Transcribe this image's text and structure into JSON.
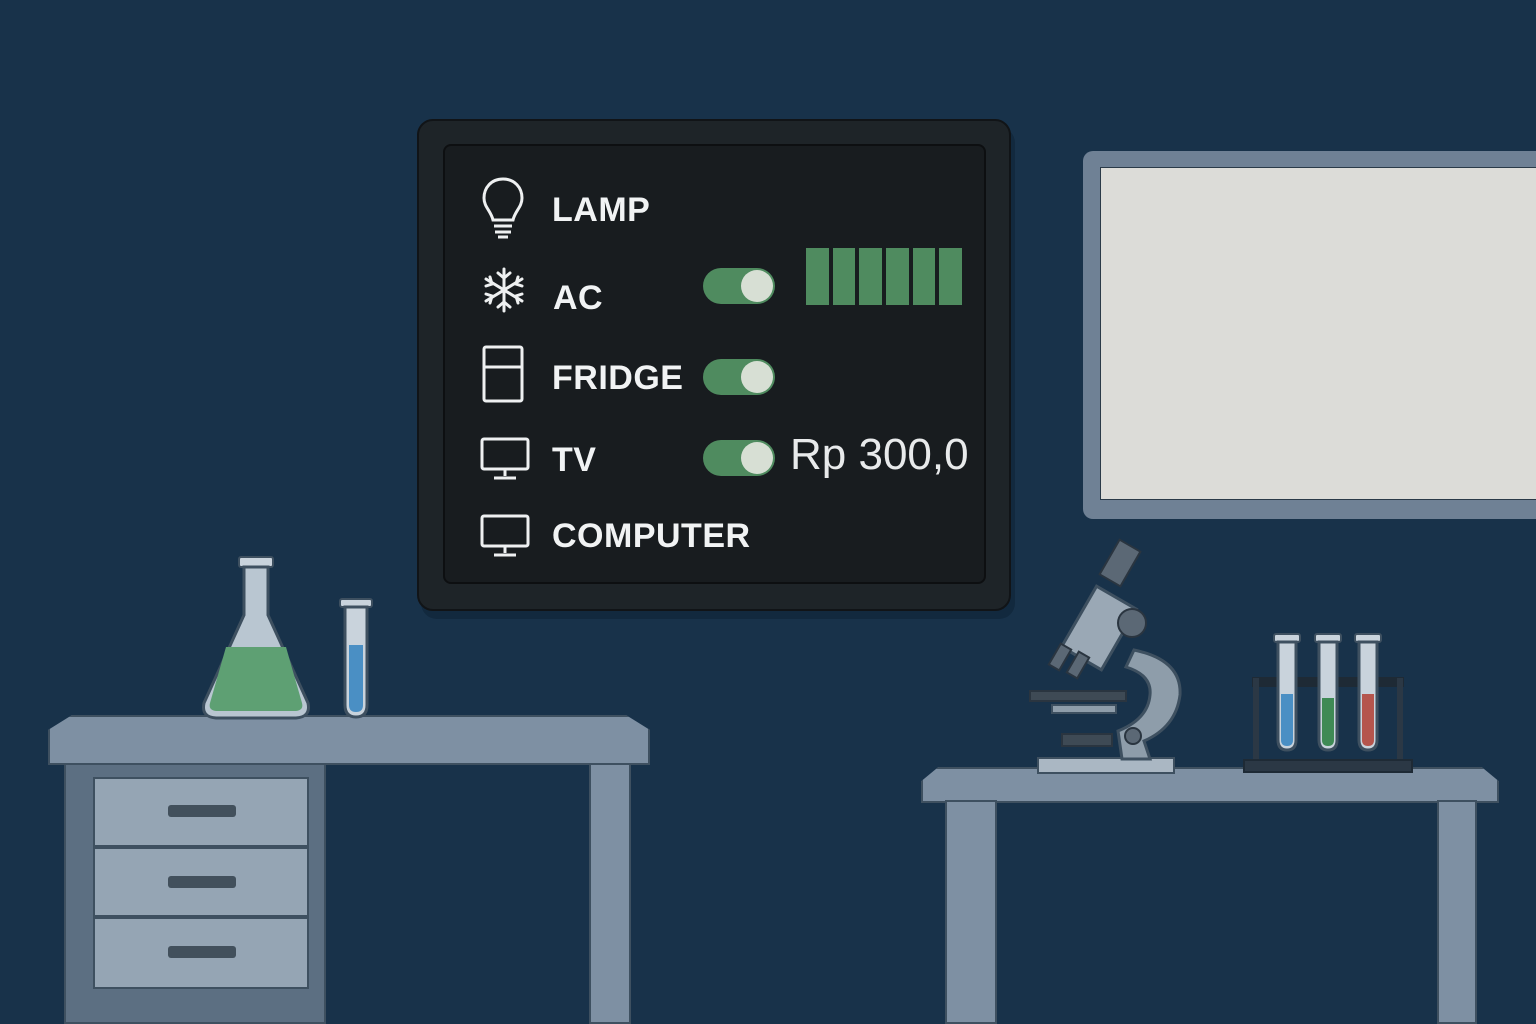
{
  "dashboard": {
    "devices": [
      {
        "label": "LAMP",
        "icon": "lightbulb-icon",
        "toggle": false
      },
      {
        "label": "AC",
        "icon": "snowflake-icon",
        "toggle": true,
        "toggle_on": true,
        "level_fraction": 1.0
      },
      {
        "label": "FRIDGE",
        "icon": "fridge-icon",
        "toggle": true,
        "toggle_on": true
      },
      {
        "label": "TV",
        "icon": "monitor-icon",
        "toggle": true,
        "toggle_on": true
      },
      {
        "label": "COMPUTER",
        "icon": "monitor-icon",
        "toggle": false
      }
    ],
    "price": "Rp 300,0",
    "colors": {
      "toggle_on": "#4f8b5f",
      "panel": "#1e2428",
      "wall": "#18324a"
    }
  }
}
